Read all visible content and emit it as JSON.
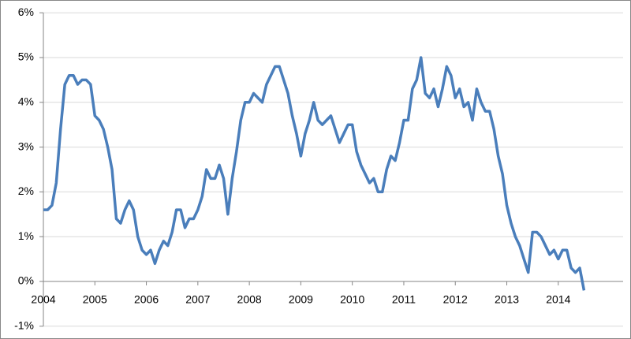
{
  "chart_data": {
    "type": "line",
    "categories": [
      "2004",
      null,
      null,
      null,
      null,
      null,
      null,
      null,
      null,
      null,
      null,
      null,
      "2005",
      null,
      null,
      null,
      null,
      null,
      null,
      null,
      null,
      null,
      null,
      null,
      "2006",
      null,
      null,
      null,
      null,
      null,
      null,
      null,
      null,
      null,
      null,
      null,
      "2007",
      null,
      null,
      null,
      null,
      null,
      null,
      null,
      null,
      null,
      null,
      null,
      "2008",
      null,
      null,
      null,
      null,
      null,
      null,
      null,
      null,
      null,
      null,
      null,
      "2009",
      null,
      null,
      null,
      null,
      null,
      null,
      null,
      null,
      null,
      null,
      null,
      "2010",
      null,
      null,
      null,
      null,
      null,
      null,
      null,
      null,
      null,
      null,
      null,
      "2011",
      null,
      null,
      null,
      null,
      null,
      null,
      null,
      null,
      null,
      null,
      null,
      "2012",
      null,
      null,
      null,
      null,
      null,
      null,
      null,
      null,
      null,
      null,
      null,
      "2013",
      null,
      null,
      null,
      null,
      null,
      null,
      null,
      null,
      null,
      null,
      null,
      "2014",
      null,
      null,
      null,
      null,
      null,
      null
    ],
    "values": [
      1.6,
      1.6,
      1.7,
      2.2,
      3.4,
      4.4,
      4.6,
      4.6,
      4.4,
      4.5,
      4.5,
      4.4,
      3.7,
      3.6,
      3.4,
      3.0,
      2.5,
      1.4,
      1.3,
      1.6,
      1.8,
      1.6,
      1.0,
      0.7,
      0.6,
      0.7,
      0.4,
      0.7,
      0.9,
      0.8,
      1.1,
      1.6,
      1.6,
      1.2,
      1.4,
      1.4,
      1.6,
      1.9,
      2.5,
      2.3,
      2.3,
      2.6,
      2.3,
      1.5,
      2.3,
      2.9,
      3.6,
      4.0,
      4.0,
      4.2,
      4.1,
      4.0,
      4.4,
      4.6,
      4.8,
      4.8,
      4.5,
      4.2,
      3.7,
      3.3,
      2.8,
      3.3,
      3.6,
      4.0,
      3.6,
      3.5,
      3.6,
      3.7,
      3.4,
      3.1,
      3.3,
      3.5,
      3.5,
      2.9,
      2.6,
      2.4,
      2.2,
      2.3,
      2.0,
      2.0,
      2.5,
      2.8,
      2.7,
      3.1,
      3.6,
      3.6,
      4.3,
      4.5,
      5.0,
      4.2,
      4.1,
      4.3,
      3.9,
      4.3,
      4.8,
      4.6,
      4.1,
      4.3,
      3.9,
      4.0,
      3.6,
      4.3,
      4.0,
      3.8,
      3.8,
      3.4,
      2.8,
      2.4,
      1.7,
      1.3,
      1.0,
      0.8,
      0.5,
      0.2,
      1.1,
      1.1,
      1.0,
      0.8,
      0.6,
      0.7,
      0.5,
      0.7,
      0.7,
      0.3,
      0.2,
      0.3,
      -0.2
    ],
    "color": "#4a7ebb",
    "ylim": [
      -1,
      6
    ],
    "yticks": [
      {
        "value": -1,
        "label": "-1%"
      },
      {
        "value": 0,
        "label": "0%"
      },
      {
        "value": 1,
        "label": "1%"
      },
      {
        "value": 2,
        "label": "2%"
      },
      {
        "value": 3,
        "label": "3%"
      },
      {
        "value": 4,
        "label": "4%"
      },
      {
        "value": 5,
        "label": "5%"
      },
      {
        "value": 6,
        "label": "6%"
      }
    ],
    "grid": true
  }
}
